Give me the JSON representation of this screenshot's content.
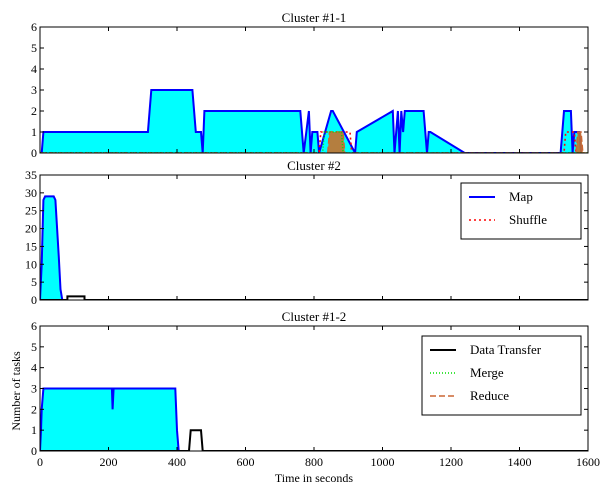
{
  "figure": {
    "xlabel": "Time in seconds",
    "ylabel": "Number of tasks",
    "x_ticks": [
      "0",
      "200",
      "400",
      "600",
      "800",
      "1000",
      "1200",
      "1400",
      "1600"
    ]
  },
  "legend_labels": {
    "map": "Map",
    "shuffle": "Shuffle",
    "data_transfer": "Data Transfer",
    "merge": "Merge",
    "reduce": "Reduce"
  },
  "colors": {
    "map_line": "#0000ff",
    "map_fill": "#00ffff",
    "shuffle": "#ff0000",
    "data_transfer": "#000000",
    "merge": "#00dd00",
    "reduce": "#cc6633",
    "reduce_fill": "#c8702a"
  },
  "chart_data": [
    {
      "type": "line",
      "title": "Cluster #1-1",
      "xlim": [
        0,
        1600
      ],
      "ylim": [
        0,
        6
      ],
      "y_ticks": [
        "0",
        "1",
        "2",
        "3",
        "4",
        "5",
        "6"
      ],
      "grid": false,
      "series": [
        {
          "name": "Map",
          "style": "filled",
          "x": [
            0,
            5,
            10,
            315,
            320,
            325,
            445,
            450,
            455,
            470,
            475,
            480,
            760,
            765,
            770,
            785,
            790,
            795,
            810,
            815,
            850,
            855,
            920,
            925,
            1030,
            1035,
            1045,
            1050,
            1055,
            1060,
            1065,
            1120,
            1125,
            1130,
            1135,
            1140,
            1240,
            1245,
            1520,
            1525,
            1530,
            1550,
            1555,
            1560,
            1575,
            1580
          ],
          "y": [
            0,
            0,
            1,
            1,
            2,
            3,
            3,
            2,
            1,
            1,
            0,
            2,
            2,
            1,
            0,
            2,
            0,
            1,
            1,
            0,
            2,
            2,
            0,
            1,
            2,
            0,
            2,
            0,
            2,
            1,
            2,
            2,
            1,
            0,
            1,
            1,
            0,
            0,
            0,
            1,
            2,
            2,
            0,
            1,
            1,
            0
          ]
        },
        {
          "name": "Shuffle",
          "x": [
            0,
            815,
            820,
            905,
            910,
            1530,
            1535,
            1560,
            1565,
            1600
          ],
          "y": [
            0,
            0,
            1,
            1,
            0,
            0,
            1,
            1,
            0,
            0
          ]
        },
        {
          "name": "Reduce",
          "x": [
            0,
            840,
            845,
            885,
            890,
            1565,
            1570,
            1580,
            1585,
            1600
          ],
          "y": [
            0,
            0,
            1,
            1,
            0,
            0,
            1,
            1,
            0,
            0
          ]
        },
        {
          "name": "Merge",
          "x": [
            0,
            825,
            830,
            880,
            885,
            1600
          ],
          "y": [
            0,
            0,
            1,
            1,
            0,
            0
          ]
        }
      ]
    },
    {
      "type": "line",
      "title": "Cluster #2",
      "xlim": [
        0,
        1600
      ],
      "ylim": [
        0,
        35
      ],
      "y_ticks": [
        "0",
        "5",
        "10",
        "15",
        "20",
        "25",
        "30",
        "35"
      ],
      "grid": false,
      "legend": "top-right",
      "series": [
        {
          "name": "Map",
          "style": "filled",
          "x": [
            0,
            5,
            10,
            15,
            20,
            40,
            45,
            50,
            55,
            60,
            65
          ],
          "y": [
            0,
            10,
            28,
            29,
            29,
            29,
            28,
            20,
            12,
            3,
            0
          ]
        },
        {
          "name": "Data Transfer",
          "x": [
            0,
            80,
            80,
            130,
            130,
            1600
          ],
          "y": [
            0,
            0,
            1,
            1,
            0,
            0
          ]
        }
      ]
    },
    {
      "type": "line",
      "title": "Cluster #1-2",
      "xlim": [
        0,
        1600
      ],
      "ylim": [
        0,
        6
      ],
      "y_ticks": [
        "0",
        "1",
        "2",
        "3",
        "4",
        "5",
        "6"
      ],
      "grid": false,
      "legend": "top-right",
      "series": [
        {
          "name": "Map",
          "style": "filled",
          "x": [
            0,
            3,
            5,
            10,
            210,
            212,
            215,
            218,
            395,
            400,
            405
          ],
          "y": [
            0,
            1,
            2,
            3,
            3,
            2,
            3,
            3,
            3,
            1,
            0
          ]
        },
        {
          "name": "Data Transfer",
          "x": [
            0,
            435,
            440,
            470,
            475,
            1600
          ],
          "y": [
            0,
            0,
            1,
            1,
            0,
            0
          ]
        }
      ]
    }
  ]
}
